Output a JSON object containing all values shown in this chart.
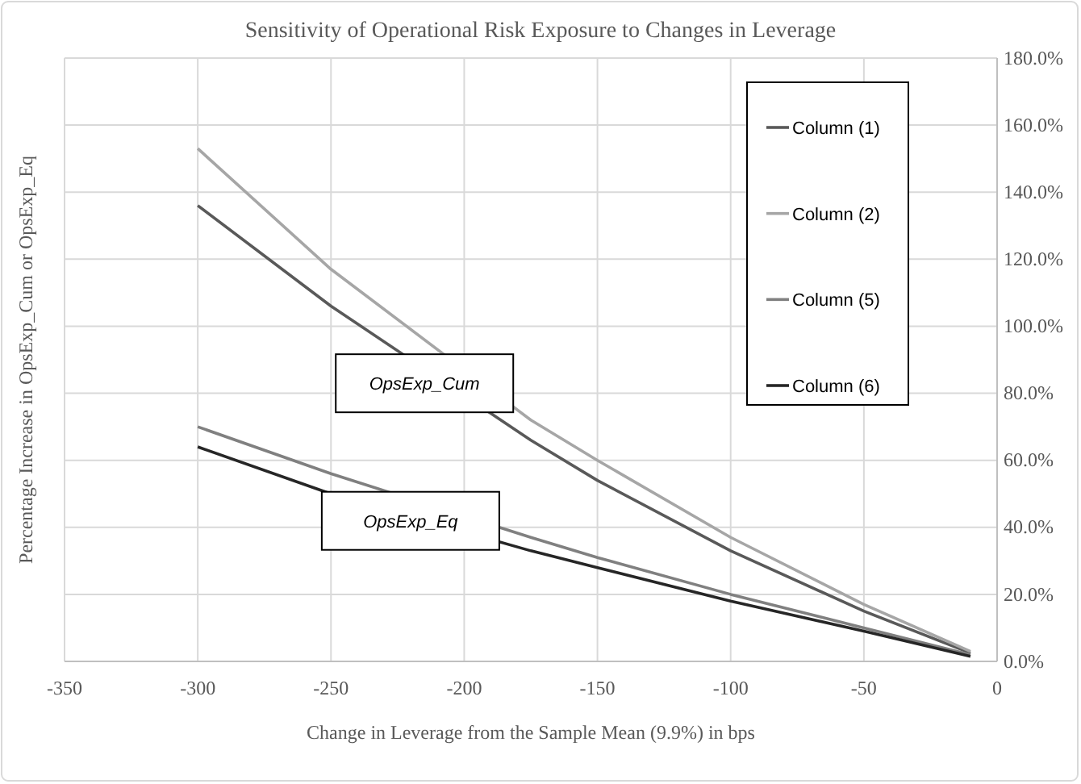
{
  "chart_data": {
    "type": "line",
    "title": "Sensitivity of Operational Risk Exposure to Changes in Leverage",
    "xlabel": "Change in Leverage from the Sample Mean (9.9%) in bps",
    "ylabel": "Percentage Increase in OpsExp_Cum or OpsExp_Eq",
    "x": [
      -300,
      -250,
      -175,
      -150,
      -100,
      -50,
      -10
    ],
    "series": [
      {
        "name": "Column (1)",
        "color": "#595959",
        "values": [
          136,
          106,
          66,
          54,
          33,
          15,
          2.5
        ]
      },
      {
        "name": "Column (2)",
        "color": "#a6a6a6",
        "values": [
          153,
          117,
          72,
          60,
          37,
          17,
          3
        ]
      },
      {
        "name": "Column (5)",
        "color": "#808080",
        "values": [
          70,
          56,
          37,
          31,
          20,
          10,
          2
        ]
      },
      {
        "name": "Column (6)",
        "color": "#262626",
        "values": [
          64,
          50,
          33,
          28,
          18,
          9,
          1.5
        ]
      }
    ],
    "annotations": [
      "OpsExp_Cum",
      "OpsExp_Eq"
    ],
    "xlim": [
      -350,
      0
    ],
    "xticks": [
      -350,
      -300,
      -250,
      -200,
      -150,
      -100,
      -50,
      0
    ],
    "ylim": [
      0,
      180
    ],
    "yticks": [
      {
        "value": 0,
        "label": "0.0%"
      },
      {
        "value": 20,
        "label": "20.0%"
      },
      {
        "value": 40,
        "label": "40.0%"
      },
      {
        "value": 60,
        "label": "60.0%"
      },
      {
        "value": 80,
        "label": "80.0%"
      },
      {
        "value": 100,
        "label": "100.0%"
      },
      {
        "value": 120,
        "label": "120.0%"
      },
      {
        "value": 140,
        "label": "140.0%"
      },
      {
        "value": 160,
        "label": "160.0%"
      },
      {
        "value": 180,
        "label": "180.0%"
      }
    ],
    "grid": true,
    "legend": "top right",
    "marker": "none",
    "line_style": "solid"
  }
}
